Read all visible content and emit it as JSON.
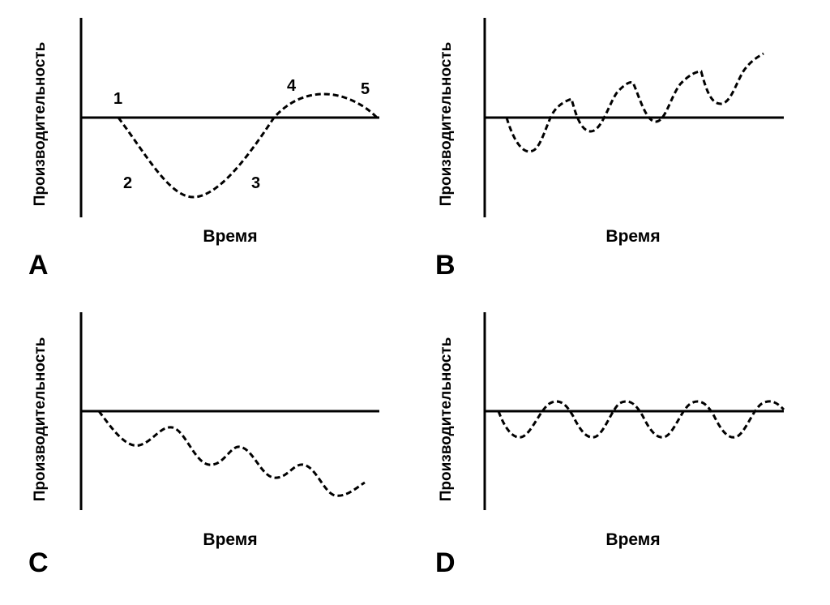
{
  "panels": [
    {
      "letter": "A",
      "ylabel": "Производительность",
      "xlabel": "Время",
      "markers": [
        "1",
        "2",
        "3",
        "4",
        "5"
      ],
      "pattern": "dip-then-recovery"
    },
    {
      "letter": "B",
      "ylabel": "Производительность",
      "xlabel": "Время",
      "markers": [],
      "pattern": "oscillating-upward-trend"
    },
    {
      "letter": "C",
      "ylabel": "Производительность",
      "xlabel": "Время",
      "markers": [],
      "pattern": "oscillating-downward-trend"
    },
    {
      "letter": "D",
      "ylabel": "Производительность",
      "xlabel": "Время",
      "markers": [],
      "pattern": "stable-oscillation"
    }
  ]
}
